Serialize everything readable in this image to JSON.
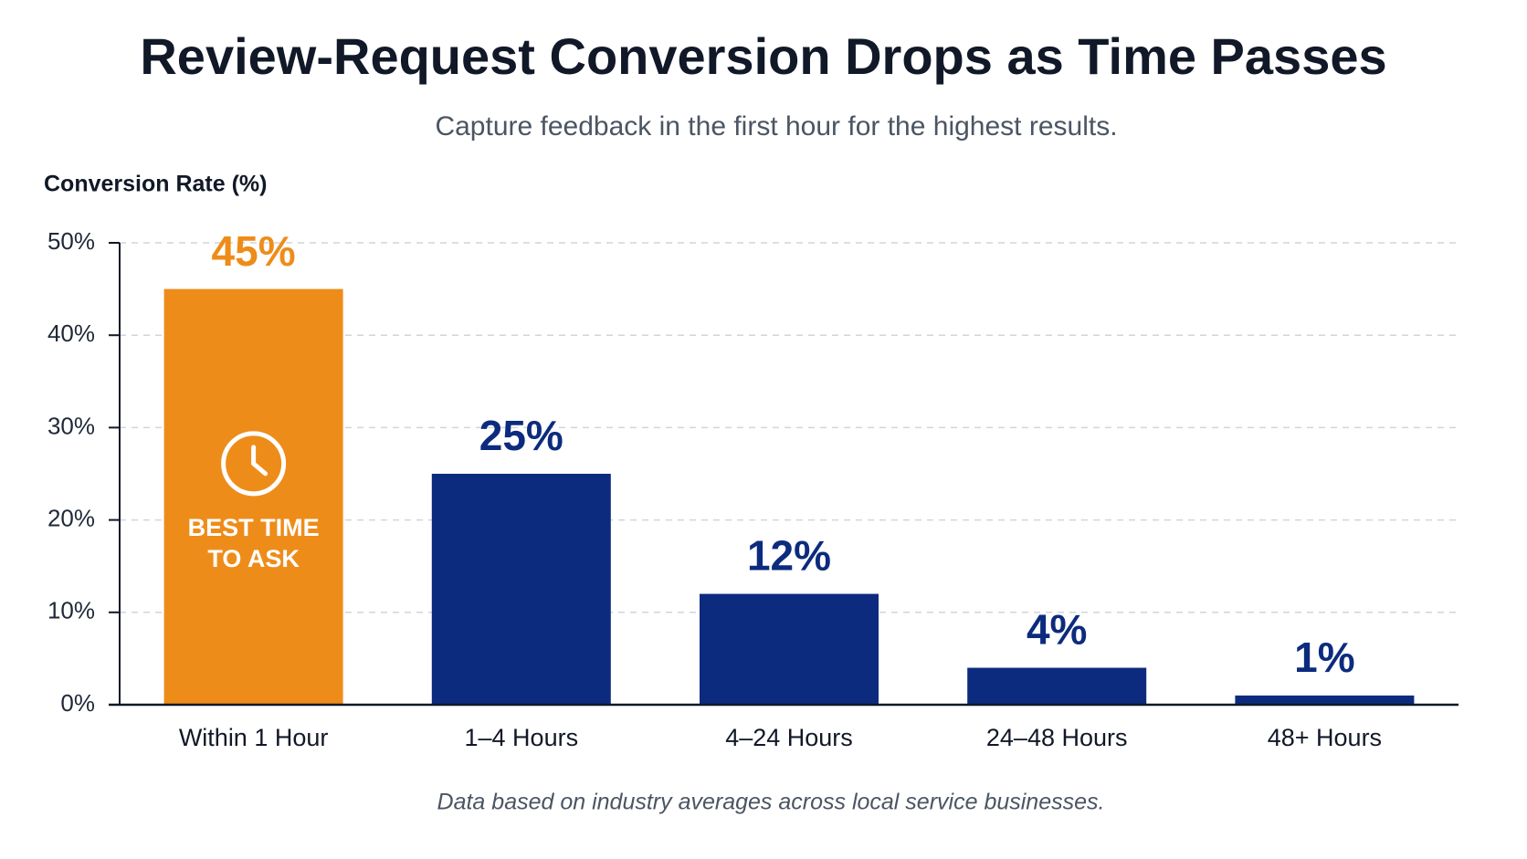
{
  "chart_data": {
    "type": "bar",
    "title": "Review-Request Conversion Drops as Time Passes",
    "subtitle": "Capture feedback in the first hour for the highest results.",
    "y_label": "Conversion Rate (%)",
    "categories": [
      "Within 1 Hour",
      "1–4 Hours",
      "4–24 Hours",
      "24–48 Hours",
      "48+ Hours"
    ],
    "values": [
      45,
      25,
      12,
      4,
      1
    ],
    "value_labels": [
      "45%",
      "25%",
      "12%",
      "4%",
      "1%"
    ],
    "colors": [
      "#ee8c1a",
      "#0d2b7e",
      "#0d2b7e",
      "#0d2b7e",
      "#0d2b7e"
    ],
    "annotation": [
      "BEST TIME",
      "TO ASK"
    ],
    "ylim": [
      0,
      50
    ],
    "yticks": [
      {
        "value": 0,
        "label": "0%"
      },
      {
        "value": 10,
        "label": "10%"
      },
      {
        "value": 20,
        "label": "20%"
      },
      {
        "value": 30,
        "label": "30%"
      },
      {
        "value": 40,
        "label": "40%"
      },
      {
        "value": 50,
        "label": "50%"
      }
    ],
    "grid": true,
    "footnote": "Data based on industry averages across local service businesses."
  }
}
